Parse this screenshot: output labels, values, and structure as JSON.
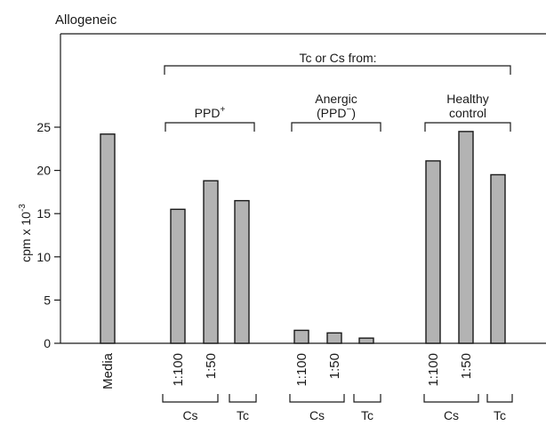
{
  "chart_data": {
    "type": "bar",
    "title": "Allogeneic",
    "ylabel": "cpm x 10",
    "ylabel_sup": "-3",
    "ylim": [
      0,
      25
    ],
    "yticks": [
      0,
      5,
      10,
      15,
      20,
      25
    ],
    "grid": false,
    "bars": [
      {
        "category": "Media",
        "value": 24.2
      },
      {
        "category": "1:100",
        "value": 15.5
      },
      {
        "category": "1:50",
        "value": 18.8
      },
      {
        "category": "",
        "value": 16.5
      },
      {
        "category": "1:100",
        "value": 1.5
      },
      {
        "category": "1:50",
        "value": 1.2
      },
      {
        "category": "",
        "value": 0.6
      },
      {
        "category": "1:100",
        "value": 21.1
      },
      {
        "category": "1:50",
        "value": 24.5
      },
      {
        "category": "",
        "value": 19.5
      }
    ],
    "groups": [
      {
        "name": "PPD",
        "sup": "+"
      },
      {
        "name": "Anergic",
        "name_line2": "(PPD",
        "sup": "−",
        "close": ")"
      },
      {
        "name": "Healthy",
        "name_line2": "control"
      }
    ],
    "bracket_label": "Tc or Cs from:",
    "sub_labels": [
      "Cs",
      "Tc",
      "Cs",
      "Tc",
      "Cs",
      "Tc"
    ]
  }
}
